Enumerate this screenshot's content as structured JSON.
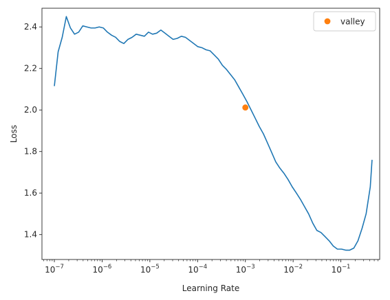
{
  "chart_data": {
    "type": "line",
    "title": "",
    "xlabel": "Learning Rate",
    "ylabel": "Loss",
    "xscale": "log",
    "xlim": [
      5.5e-08,
      0.65
    ],
    "ylim": [
      1.28,
      2.49
    ],
    "grid": false,
    "legend": {
      "placement": "top-right",
      "entries": [
        {
          "label": "valley",
          "color": "#ff7f0e",
          "marker": "circle"
        }
      ]
    },
    "colors": {
      "line": "#1f77b4",
      "point": "#ff7f0e",
      "axes": "#262626"
    },
    "x_ticks": [
      {
        "value": 1e-07,
        "base": "10",
        "exp": "−7"
      },
      {
        "value": 1e-06,
        "base": "10",
        "exp": "−6"
      },
      {
        "value": 1e-05,
        "base": "10",
        "exp": "−5"
      },
      {
        "value": 0.0001,
        "base": "10",
        "exp": "−4"
      },
      {
        "value": 0.001,
        "base": "10",
        "exp": "−3"
      },
      {
        "value": 0.01,
        "base": "10",
        "exp": "−2"
      },
      {
        "value": 0.1,
        "base": "10",
        "exp": "−1"
      }
    ],
    "y_ticks": [
      {
        "value": 1.4,
        "label": "1.4"
      },
      {
        "value": 1.6,
        "label": "1.6"
      },
      {
        "value": 1.8,
        "label": "1.8"
      },
      {
        "value": 2.0,
        "label": "2.0"
      },
      {
        "value": 2.2,
        "label": "2.2"
      },
      {
        "value": 2.4,
        "label": "2.4"
      }
    ],
    "series": [
      {
        "kind": "line",
        "x": [
          1e-07,
          1.2e-07,
          1.46e-07,
          1.78e-07,
          2.17e-07,
          2.65e-07,
          3.23e-07,
          3.94e-07,
          4.8e-07,
          5.85e-07,
          7.13e-07,
          8.69e-07,
          1.06e-06,
          1.29e-06,
          1.58e-06,
          1.92e-06,
          2.34e-06,
          2.85e-06,
          3.48e-06,
          4.24e-06,
          5.17e-06,
          6.3e-06,
          7.68e-06,
          9.36e-06,
          1.14e-05,
          1.39e-05,
          1.7e-05,
          2.07e-05,
          2.52e-05,
          3.07e-05,
          3.75e-05,
          4.57e-05,
          5.57e-05,
          6.79e-05,
          8.27e-05,
          0.000101,
          0.000123,
          0.00015,
          0.000183,
          0.000223,
          0.000271,
          0.000331,
          0.000403,
          0.000491,
          0.000599,
          0.00073,
          0.00089,
          0.00108,
          0.00132,
          0.00161,
          0.00196,
          0.00239,
          0.00292,
          0.00356,
          0.00433,
          0.00528,
          0.00644,
          0.00785,
          0.00957,
          0.0117,
          0.0142,
          0.0173,
          0.0211,
          0.0258,
          0.0314,
          0.0383,
          0.0467,
          0.0569,
          0.0693,
          0.0845,
          0.103,
          0.126,
          0.153,
          0.187,
          0.228,
          0.278,
          0.338,
          0.413,
          0.45
        ],
        "y": [
          2.115,
          2.28,
          2.35,
          2.45,
          2.395,
          2.365,
          2.375,
          2.405,
          2.4,
          2.395,
          2.395,
          2.4,
          2.395,
          2.375,
          2.36,
          2.35,
          2.33,
          2.32,
          2.34,
          2.35,
          2.365,
          2.36,
          2.355,
          2.375,
          2.365,
          2.37,
          2.385,
          2.37,
          2.355,
          2.34,
          2.345,
          2.355,
          2.35,
          2.335,
          2.32,
          2.305,
          2.3,
          2.29,
          2.285,
          2.265,
          2.245,
          2.215,
          2.195,
          2.17,
          2.145,
          2.11,
          2.075,
          2.04,
          2.0,
          1.96,
          1.92,
          1.885,
          1.84,
          1.795,
          1.75,
          1.72,
          1.695,
          1.665,
          1.63,
          1.6,
          1.57,
          1.535,
          1.5,
          1.455,
          1.42,
          1.41,
          1.39,
          1.37,
          1.345,
          1.33,
          1.33,
          1.325,
          1.325,
          1.335,
          1.37,
          1.43,
          1.5,
          1.63,
          1.76
        ]
      },
      {
        "name": "valley",
        "kind": "point",
        "x": [
          0.001
        ],
        "y": [
          2.012
        ]
      }
    ]
  }
}
